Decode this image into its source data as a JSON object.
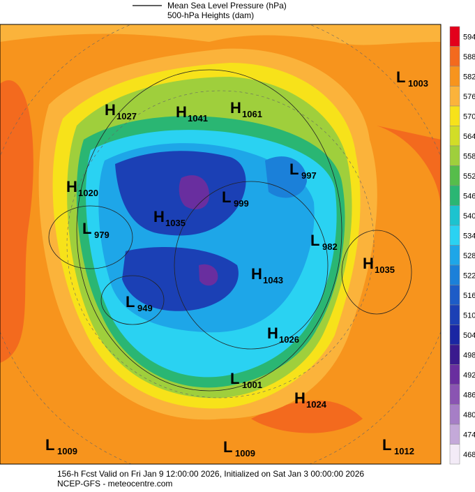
{
  "legend": {
    "line_label_1": "Mean Sea Level Pressure (hPa)",
    "line_label_2": "500-hPa Heights (dam)"
  },
  "colorbar": [
    {
      "value": 594,
      "color": "#e3001b"
    },
    {
      "value": 588,
      "color": "#f36a1e"
    },
    {
      "value": 582,
      "color": "#f7941d"
    },
    {
      "value": 576,
      "color": "#fbb33b"
    },
    {
      "value": 570,
      "color": "#f7e21a"
    },
    {
      "value": 564,
      "color": "#d2dd27"
    },
    {
      "value": 558,
      "color": "#9fcf3c"
    },
    {
      "value": 552,
      "color": "#56bd4b"
    },
    {
      "value": 546,
      "color": "#2ab673"
    },
    {
      "value": 540,
      "color": "#1cc3cf"
    },
    {
      "value": 534,
      "color": "#2ad2f2"
    },
    {
      "value": 528,
      "color": "#1ea6e8"
    },
    {
      "value": 522,
      "color": "#1b80d9"
    },
    {
      "value": 516,
      "color": "#1d5cc7"
    },
    {
      "value": 510,
      "color": "#1b40b5"
    },
    {
      "value": 504,
      "color": "#1a26a3"
    },
    {
      "value": 498,
      "color": "#3a1a8e"
    },
    {
      "value": 492,
      "color": "#692e9f"
    },
    {
      "value": 486,
      "color": "#8a54b2"
    },
    {
      "value": 480,
      "color": "#a67ec6"
    },
    {
      "value": 474,
      "color": "#c4a9d9"
    },
    {
      "value": 468,
      "color": "#f3ebf7"
    }
  ],
  "centers": [
    {
      "type": "H",
      "value": "1027"
    },
    {
      "type": "H",
      "value": "1041"
    },
    {
      "type": "H",
      "value": "1061"
    },
    {
      "type": "L",
      "value": "1003"
    },
    {
      "type": "L",
      "value": "997"
    },
    {
      "type": "H",
      "value": "1020"
    },
    {
      "type": "L",
      "value": "999"
    },
    {
      "type": "H",
      "value": "1035"
    },
    {
      "type": "L",
      "value": "979"
    },
    {
      "type": "L",
      "value": "982"
    },
    {
      "type": "H",
      "value": "1035"
    },
    {
      "type": "H",
      "value": "1043"
    },
    {
      "type": "L",
      "value": "949"
    },
    {
      "type": "H",
      "value": "1026"
    },
    {
      "type": "L",
      "value": "1001"
    },
    {
      "type": "H",
      "value": "1024"
    },
    {
      "type": "L",
      "value": "1009"
    },
    {
      "type": "L",
      "value": "1009"
    },
    {
      "type": "L",
      "value": "1012"
    }
  ],
  "footer": {
    "line_1": "156-h Fcst Valid on Fri Jan  9 12:00:00 2026, Initialized on Sat Jan  3 00:00:00 2026",
    "line_2": "NCEP-GFS - meteocentre.com"
  }
}
